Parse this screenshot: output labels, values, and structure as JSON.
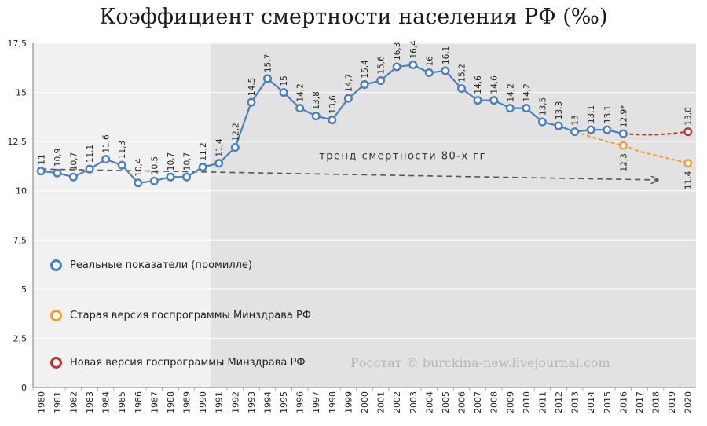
{
  "chart_data": {
    "type": "line",
    "title": "Коэффициент смертности населения РФ (‰)",
    "xlabel": "",
    "ylabel": "",
    "ylim": [
      0,
      17.5
    ],
    "yticks": [
      "0",
      "2,5",
      "5",
      "7,5",
      "10",
      "12,5",
      "15",
      "17,5"
    ],
    "x": [
      "1980",
      "1981",
      "1982",
      "1983",
      "1984",
      "1985",
      "1986",
      "1987",
      "1988",
      "1989",
      "1990",
      "1991",
      "1992",
      "1993",
      "1994",
      "1995",
      "1996",
      "1997",
      "1998",
      "1999",
      "2000",
      "2001",
      "2002",
      "2003",
      "2004",
      "2005",
      "2006",
      "2007",
      "2008",
      "2009",
      "2010",
      "2011",
      "2012",
      "2013",
      "2014",
      "2015",
      "2016",
      "2017",
      "2018",
      "2019",
      "2020"
    ],
    "series": [
      {
        "name": "Реальные показатели (промилле)",
        "color": "#4a7fc1",
        "x": [
          "1980",
          "1981",
          "1982",
          "1983",
          "1984",
          "1985",
          "1986",
          "1987",
          "1988",
          "1989",
          "1990",
          "1991",
          "1992",
          "1993",
          "1994",
          "1995",
          "1996",
          "1997",
          "1998",
          "1999",
          "2000",
          "2001",
          "2002",
          "2003",
          "2004",
          "2005",
          "2006",
          "2007",
          "2008",
          "2009",
          "2010",
          "2011",
          "2012",
          "2013",
          "2014",
          "2015",
          "2016"
        ],
        "values": [
          11,
          10.9,
          10.7,
          11.1,
          11.6,
          11.3,
          10.4,
          10.5,
          10.7,
          10.7,
          11.2,
          11.4,
          12.2,
          14.5,
          15.7,
          15,
          14.2,
          13.8,
          13.6,
          14.7,
          15.4,
          15.6,
          16.3,
          16.4,
          16,
          16.1,
          15.2,
          14.6,
          14.6,
          14.2,
          14.2,
          13.5,
          13.3,
          13,
          13.1,
          13.1,
          12.9
        ],
        "labels": [
          "11",
          "10,9",
          "10,7",
          "11,1",
          "11,6",
          "11,3",
          "10,4",
          "10,5",
          "10,7",
          "10,7",
          "11,2",
          "11,4",
          "12,2",
          "14,5",
          "15,7",
          "15",
          "14,2",
          "13,8",
          "13,6",
          "14,7",
          "15,4",
          "15,6",
          "16,3",
          "16,4",
          "16",
          "16,1",
          "15,2",
          "14,6",
          "14,6",
          "14,2",
          "14,2",
          "13,5",
          "13,3",
          "13",
          "13,1",
          "13,1",
          "12,9*"
        ]
      },
      {
        "name": "Старая версия госпрограммы Минздрава РФ",
        "color": "#f0a030",
        "x": [
          "2016",
          "2020"
        ],
        "values": [
          12.3,
          11.4
        ],
        "labels": [
          "12,3",
          "11,4"
        ]
      },
      {
        "name": "Новая версия госпрограммы Минздрава РФ",
        "color": "#c0302e",
        "x": [
          "2020"
        ],
        "values": [
          13.0
        ],
        "labels": [
          "13,0"
        ]
      }
    ],
    "annotations": {
      "trend_label": "тренд смертности 80-х гг"
    },
    "watermark": "Росстат © burckina-new.livejournal.com",
    "legend_position": "left",
    "grid": true
  }
}
